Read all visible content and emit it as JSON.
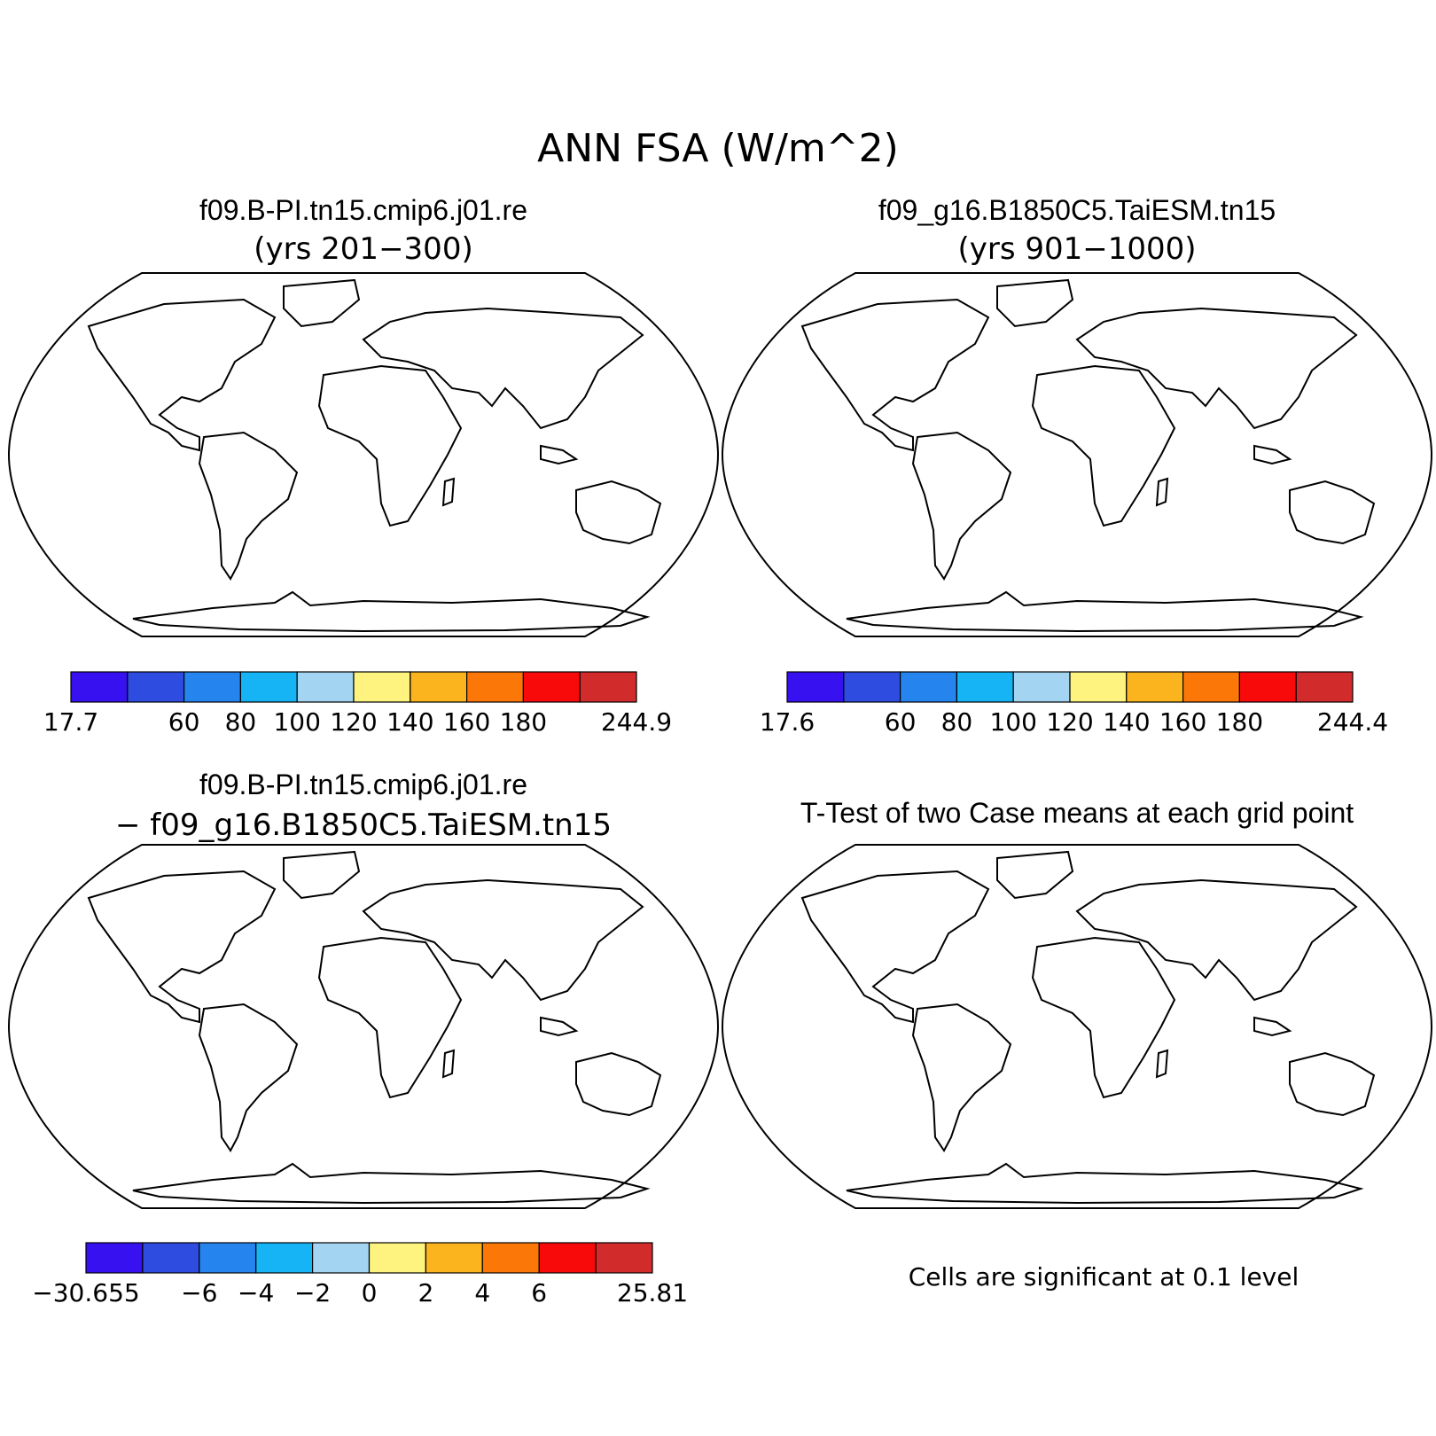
{
  "figure": {
    "title": "ANN FSA (W/m^2)"
  },
  "palette": {
    "levels10": [
      "#3811f0",
      "#2e4ce0",
      "#2684ee",
      "#16b4f4",
      "#a3d5f2",
      "#fdf37e",
      "#fbb41d",
      "#fa7708",
      "#f80a0a",
      "#d22b2b"
    ],
    "signif": "#ff0000",
    "land_outline": "#000000"
  },
  "panels": [
    {
      "id": "case1",
      "title": "f09.B-PI.tn15.cmip6.j01.re",
      "subtitle": "(yrs 201−300)",
      "colorbar": {
        "labels": [
          "17.7",
          "60",
          "80",
          "100",
          "120",
          "140",
          "160",
          "180",
          "244.9"
        ]
      }
    },
    {
      "id": "case2",
      "title": "f09_g16.B1850C5.TaiESM.tn15",
      "subtitle": "(yrs 901−1000)",
      "colorbar": {
        "labels": [
          "17.6",
          "60",
          "80",
          "100",
          "120",
          "140",
          "160",
          "180",
          "244.4"
        ]
      }
    },
    {
      "id": "diff",
      "title": "f09.B-PI.tn15.cmip6.j01.re",
      "subtitle": "− f09_g16.B1850C5.TaiESM.tn15",
      "colorbar": {
        "labels": [
          "−30.655",
          "−6",
          "−4",
          "−2",
          "0",
          "2",
          "4",
          "6",
          "25.81"
        ]
      }
    },
    {
      "id": "ttest",
      "title": "T-Test of two Case means at each grid point",
      "note": "Cells are significant at 0.1 level"
    }
  ]
}
